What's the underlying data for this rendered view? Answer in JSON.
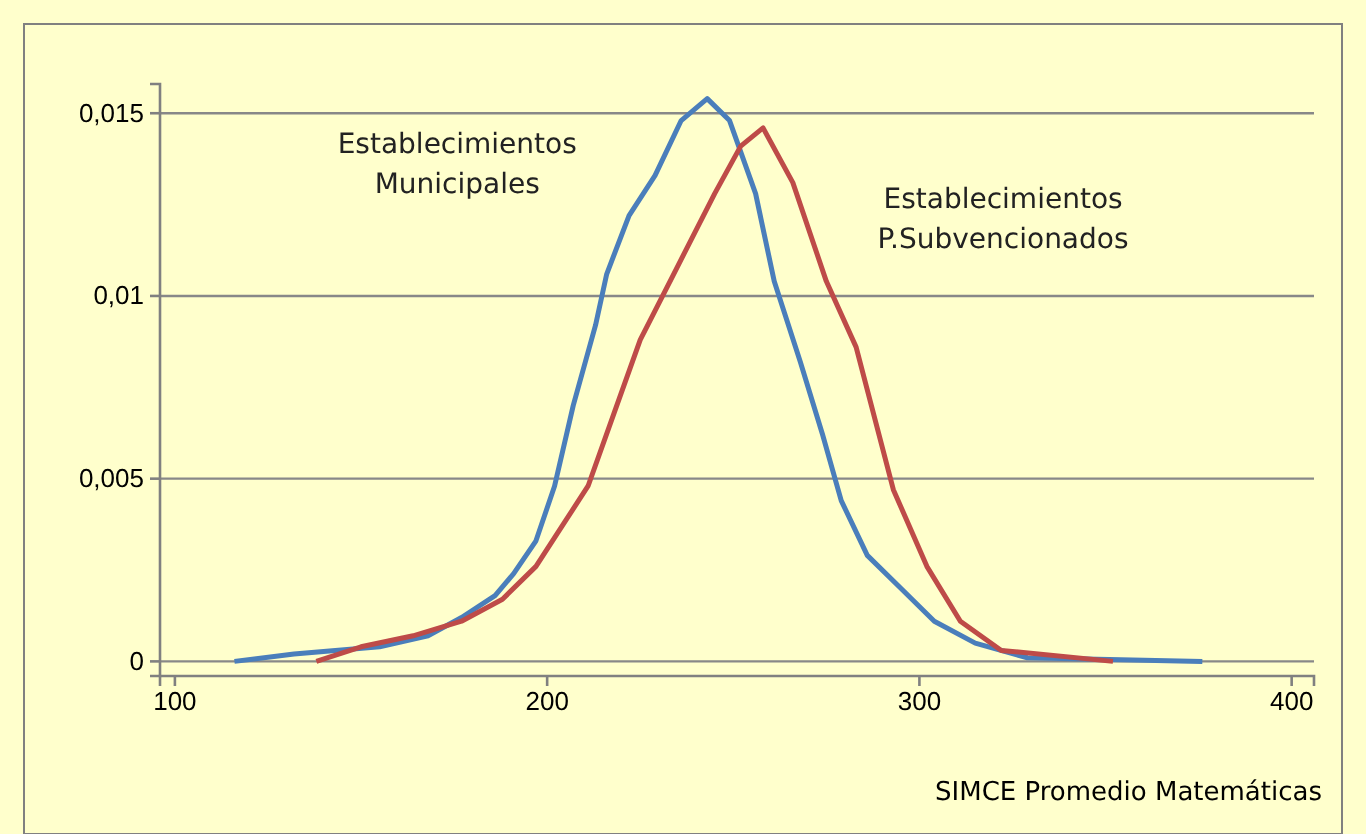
{
  "chart_data": {
    "type": "line",
    "xlabel": "SIMCE Promedio Matemáticas",
    "xlim": [
      96,
      406
    ],
    "ylim": [
      -0.0004,
      0.0158
    ],
    "xticks": [
      100,
      200,
      300,
      400
    ],
    "yticks": [
      0,
      {
        "value": 0.005,
        "label": "0,005"
      },
      {
        "value": 0.01,
        "label": "0,01"
      },
      {
        "value": 0.015,
        "label": "0,015"
      }
    ],
    "grid": "y",
    "marker": "none",
    "line_style": "solid",
    "series": [
      {
        "name": "Establecimientos Municipales",
        "color": "#4a7ebb",
        "x": [
          116,
          132,
          155,
          168,
          177,
          186,
          191,
          197,
          202,
          207,
          213,
          216,
          222,
          229,
          236,
          243,
          249,
          256,
          261,
          268,
          274,
          279,
          286,
          295,
          304,
          315,
          329,
          376
        ],
        "values": [
          0,
          0.0002,
          0.0004,
          0.0007,
          0.0012,
          0.0018,
          0.0024,
          0.0033,
          0.0048,
          0.007,
          0.0092,
          0.0106,
          0.0122,
          0.0133,
          0.0148,
          0.0154,
          0.0148,
          0.0128,
          0.0104,
          0.0082,
          0.0062,
          0.0044,
          0.0029,
          0.002,
          0.0011,
          0.0005,
          0.0001,
          0
        ]
      },
      {
        "name": "Establecimientos P.Subvencionados",
        "color": "#be4b48",
        "x": [
          138,
          150,
          164,
          177,
          188,
          197,
          204,
          211,
          218,
          225,
          234,
          245,
          252,
          258,
          266,
          275,
          283,
          293,
          302,
          311,
          322,
          352
        ],
        "values": [
          0,
          0.0004,
          0.0007,
          0.0011,
          0.0017,
          0.0026,
          0.0037,
          0.0048,
          0.0068,
          0.0088,
          0.0106,
          0.0128,
          0.0141,
          0.0146,
          0.0131,
          0.0104,
          0.0086,
          0.0047,
          0.0026,
          0.0011,
          0.0003,
          0
        ]
      }
    ]
  }
}
